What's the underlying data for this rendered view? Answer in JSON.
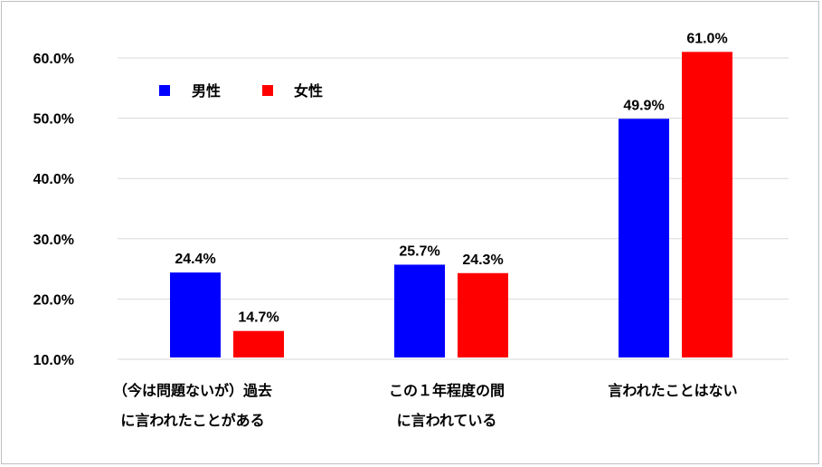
{
  "chart_data": {
    "type": "bar",
    "title": "",
    "xlabel": "",
    "ylabel": "",
    "ylim": [
      10,
      60
    ],
    "yticks": [
      "10.0%",
      "20.0%",
      "30.0%",
      "40.0%",
      "50.0%",
      "60.0%"
    ],
    "ytick_values": [
      10,
      20,
      30,
      40,
      50,
      60
    ],
    "grid": true,
    "legend_position": "top-left",
    "categories": [
      [
        "（今は問題ないが）過去",
        "に言われたことがある"
      ],
      [
        "この１年程度の間",
        "に言われている"
      ],
      [
        "言われたことはない"
      ]
    ],
    "series": [
      {
        "name": "男性",
        "color": "#0000ff",
        "values": [
          24.4,
          25.7,
          49.9
        ],
        "labels": [
          "24.4%",
          "25.7%",
          "49.9%"
        ]
      },
      {
        "name": "女性",
        "color": "#ff0000",
        "values": [
          14.7,
          24.3,
          61.0
        ],
        "labels": [
          "14.7%",
          "24.3%",
          "61.0%"
        ]
      }
    ]
  }
}
